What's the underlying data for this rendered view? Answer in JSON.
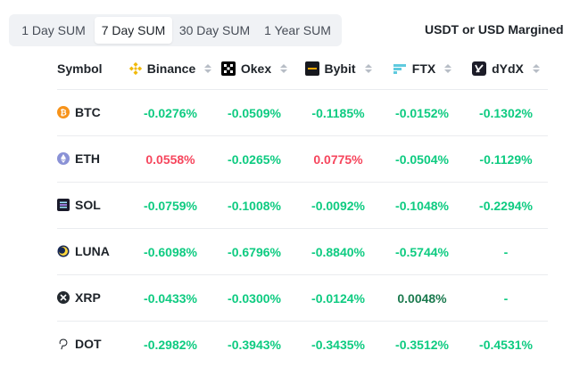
{
  "tabs": [
    "1 Day SUM",
    "7 Day SUM",
    "30 Day SUM",
    "1 Year SUM"
  ],
  "active_tab": "7 Day SUM",
  "margin_label": "USDT or USD Margined",
  "table": {
    "symbol_header": "Symbol",
    "exchanges": [
      "Binance",
      "Okex",
      "Bybit",
      "FTX",
      "dYdX"
    ],
    "rows": [
      {
        "symbol": "BTC",
        "values": [
          "-0.0276%",
          "-0.0509%",
          "-0.1185%",
          "-0.0152%",
          "-0.1302%"
        ]
      },
      {
        "symbol": "ETH",
        "values": [
          "0.0558%",
          "-0.0265%",
          "0.0775%",
          "-0.0504%",
          "-0.1129%"
        ]
      },
      {
        "symbol": "SOL",
        "values": [
          "-0.0759%",
          "-0.1008%",
          "-0.0092%",
          "-0.1048%",
          "-0.2294%"
        ]
      },
      {
        "symbol": "LUNA",
        "values": [
          "-0.6098%",
          "-0.6796%",
          "-0.8840%",
          "-0.5744%",
          "-"
        ]
      },
      {
        "symbol": "XRP",
        "values": [
          "-0.0433%",
          "-0.0300%",
          "-0.0124%",
          "0.0048%",
          "-"
        ]
      },
      {
        "symbol": "DOT",
        "values": [
          "-0.2982%",
          "-0.3943%",
          "-0.3435%",
          "-0.3512%",
          "-0.4531%"
        ]
      }
    ]
  },
  "colors": {
    "negative": "#0ecb81",
    "positive": "#f6465d",
    "small_positive": "#1c7a4f"
  },
  "icons": {
    "exchanges": [
      "binance-icon",
      "okex-icon",
      "bybit-icon",
      "ftx-icon",
      "dydx-icon"
    ],
    "coins": [
      "btc-icon",
      "eth-icon",
      "sol-icon",
      "luna-icon",
      "xrp-icon",
      "dot-icon"
    ]
  }
}
